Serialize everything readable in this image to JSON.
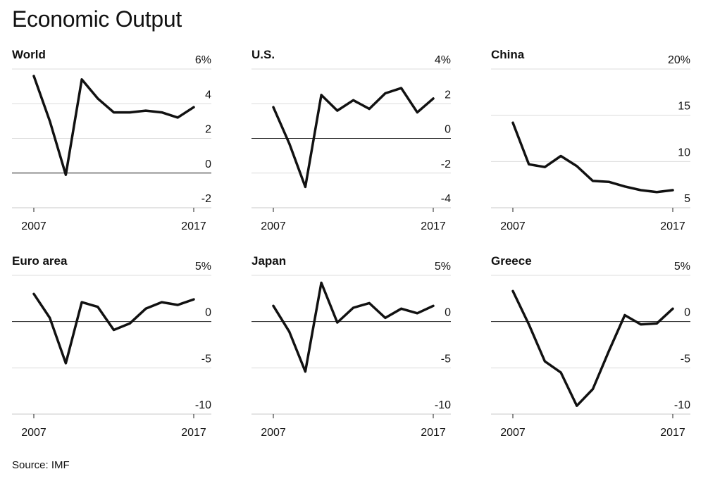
{
  "title": "Economic Output",
  "source": "Source: IMF",
  "chart_data": [
    {
      "type": "line",
      "title": "World",
      "x": [
        2007,
        2008,
        2009,
        2010,
        2011,
        2012,
        2013,
        2014,
        2015,
        2016,
        2017
      ],
      "series": [
        {
          "values": [
            5.6,
            3.0,
            -0.1,
            5.4,
            4.3,
            3.5,
            3.5,
            3.6,
            3.5,
            3.2,
            3.8
          ]
        }
      ],
      "ylim": [
        -2,
        6
      ],
      "yticks": [
        -2,
        0,
        2,
        4,
        6
      ],
      "ytick_labels": [
        "-2",
        "0",
        "2",
        "4",
        "6%"
      ],
      "xtick_labels": [
        "2007",
        "2017"
      ],
      "zero_line": true
    },
    {
      "type": "line",
      "title": "U.S.",
      "x": [
        2007,
        2008,
        2009,
        2010,
        2011,
        2012,
        2013,
        2014,
        2015,
        2016,
        2017
      ],
      "series": [
        {
          "values": [
            1.8,
            -0.3,
            -2.8,
            2.5,
            1.6,
            2.2,
            1.7,
            2.6,
            2.9,
            1.5,
            2.3
          ]
        }
      ],
      "ylim": [
        -4,
        4
      ],
      "yticks": [
        -4,
        -2,
        0,
        2,
        4
      ],
      "ytick_labels": [
        "-4",
        "-2",
        "0",
        "2",
        "4%"
      ],
      "xtick_labels": [
        "2007",
        "2017"
      ],
      "zero_line": true
    },
    {
      "type": "line",
      "title": "China",
      "x": [
        2007,
        2008,
        2009,
        2010,
        2011,
        2012,
        2013,
        2014,
        2015,
        2016,
        2017
      ],
      "series": [
        {
          "values": [
            14.2,
            9.7,
            9.4,
            10.6,
            9.5,
            7.9,
            7.8,
            7.3,
            6.9,
            6.7,
            6.9
          ]
        }
      ],
      "ylim": [
        5,
        20
      ],
      "yticks": [
        5,
        10,
        15,
        20
      ],
      "ytick_labels": [
        "5",
        "10",
        "15",
        "20%"
      ],
      "xtick_labels": [
        "2007",
        "2017"
      ],
      "zero_line": false
    },
    {
      "type": "line",
      "title": "Euro area",
      "x": [
        2007,
        2008,
        2009,
        2010,
        2011,
        2012,
        2013,
        2014,
        2015,
        2016,
        2017
      ],
      "series": [
        {
          "values": [
            3.0,
            0.4,
            -4.5,
            2.1,
            1.6,
            -0.9,
            -0.2,
            1.4,
            2.1,
            1.8,
            2.4
          ]
        }
      ],
      "ylim": [
        -10,
        5
      ],
      "yticks": [
        -10,
        -5,
        0,
        5
      ],
      "ytick_labels": [
        "-10",
        "-5",
        "0",
        "5%"
      ],
      "xtick_labels": [
        "2007",
        "2017"
      ],
      "zero_line": true
    },
    {
      "type": "line",
      "title": "Japan",
      "x": [
        2007,
        2008,
        2009,
        2010,
        2011,
        2012,
        2013,
        2014,
        2015,
        2016,
        2017
      ],
      "series": [
        {
          "values": [
            1.7,
            -1.1,
            -5.4,
            4.2,
            -0.1,
            1.5,
            2.0,
            0.4,
            1.4,
            0.9,
            1.7
          ]
        }
      ],
      "ylim": [
        -10,
        5
      ],
      "yticks": [
        -10,
        -5,
        0,
        5
      ],
      "ytick_labels": [
        "-10",
        "-5",
        "0",
        "5%"
      ],
      "xtick_labels": [
        "2007",
        "2017"
      ],
      "zero_line": true
    },
    {
      "type": "line",
      "title": "Greece",
      "x": [
        2007,
        2008,
        2009,
        2010,
        2011,
        2012,
        2013,
        2014,
        2015,
        2016,
        2017
      ],
      "series": [
        {
          "values": [
            3.3,
            -0.3,
            -4.3,
            -5.5,
            -9.1,
            -7.3,
            -3.2,
            0.7,
            -0.3,
            -0.2,
            1.4
          ]
        }
      ],
      "ylim": [
        -10,
        5
      ],
      "yticks": [
        -10,
        -5,
        0,
        5
      ],
      "ytick_labels": [
        "-10",
        "-5",
        "0",
        "5%"
      ],
      "xtick_labels": [
        "2007",
        "2017"
      ],
      "zero_line": true
    }
  ]
}
